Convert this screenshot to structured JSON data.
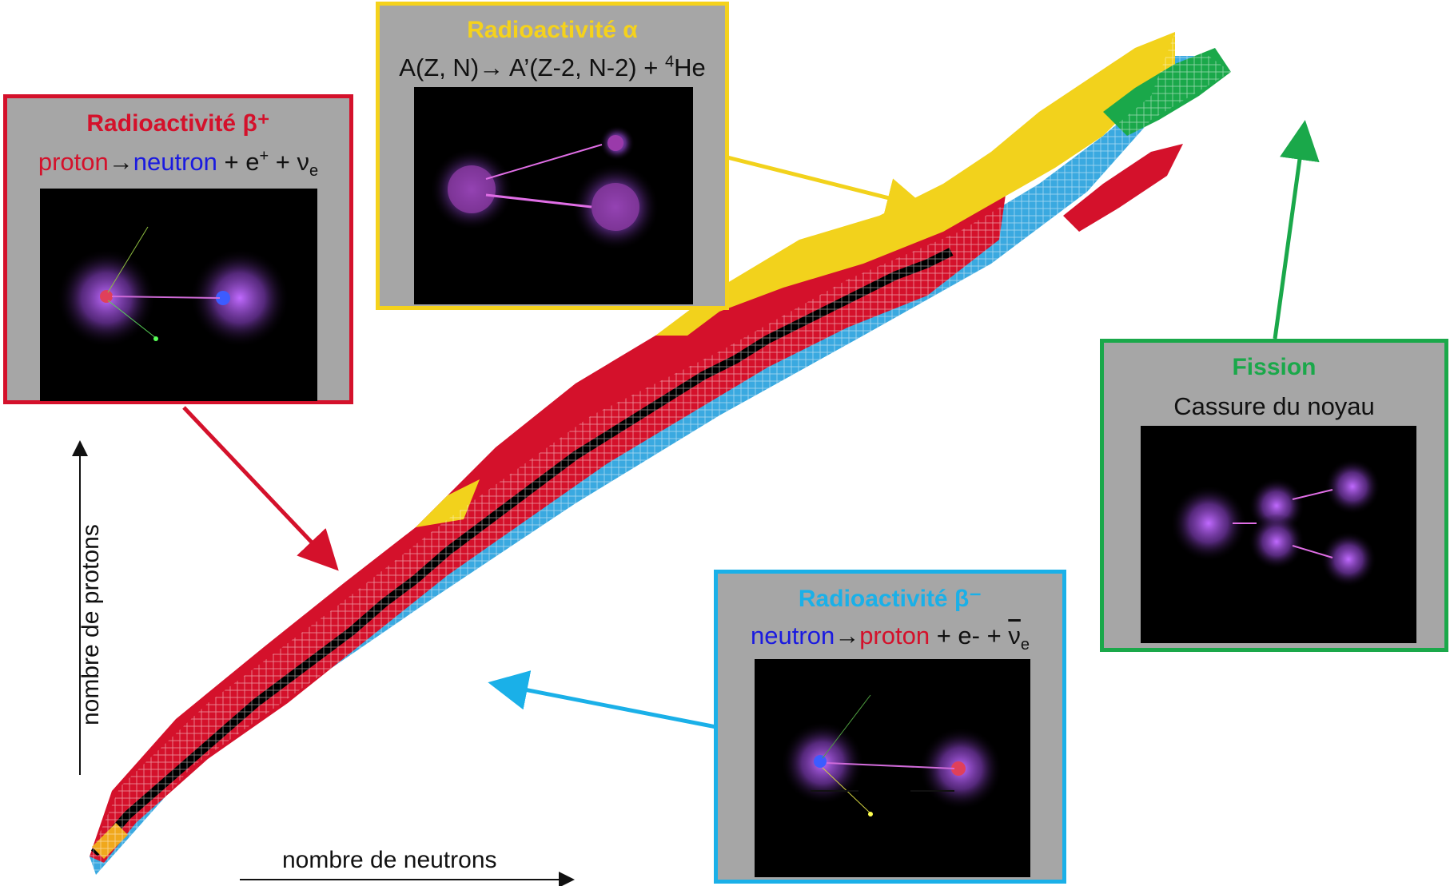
{
  "diagram": {
    "y_axis_label": "nombre de protons",
    "x_axis_label": "nombre de neutrons",
    "colors": {
      "beta_plus": "#d4112b",
      "beta_minus": "#3aa9e0",
      "alpha": "#f2d21c",
      "fission": "#1aa84a",
      "stable": "#000000",
      "other": "#f0a81c"
    }
  },
  "panels": {
    "beta_plus": {
      "title": "Radioactivité β⁺",
      "eq_part1": "proton",
      "eq_arrow": "→",
      "eq_part2": "neutron",
      "eq_rest": " + e",
      "eq_sup": "+",
      "eq_rest2": " + ν",
      "eq_sub": "e",
      "border_color": "#d4112b"
    },
    "alpha": {
      "title": "Radioactivité α",
      "eq_part1": "A(Z, N)",
      "eq_arrow": "→",
      "eq_part2": " A’(Z-2, N-2) + ",
      "eq_sup": "4",
      "eq_rest": "He",
      "border_color": "#f5d21c"
    },
    "fission": {
      "title": "Fission",
      "subtitle": "Cassure du noyau",
      "border_color": "#1aa84a"
    },
    "beta_minus": {
      "title": "Radioactivité β⁻",
      "eq_part1": "neutron",
      "eq_arrow": "→",
      "eq_part2": "proton",
      "eq_rest": " + e- + ",
      "eq_nu": "ν",
      "eq_sub": "e",
      "border_color": "#1ab0e8"
    }
  }
}
